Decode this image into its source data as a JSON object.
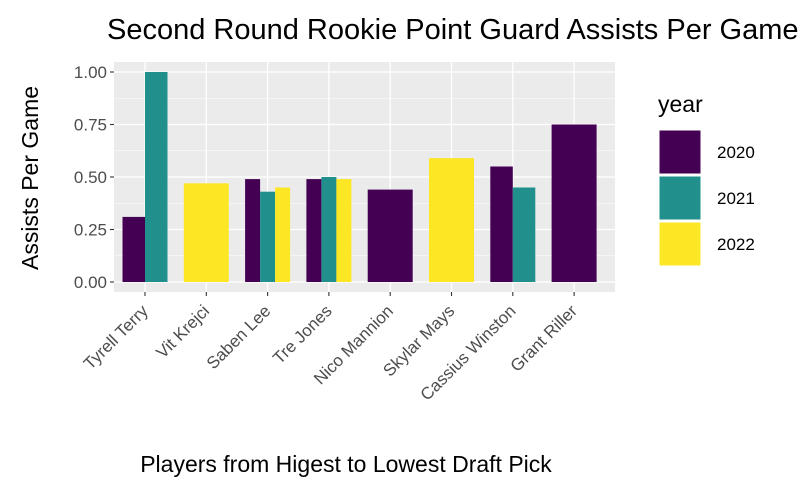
{
  "chart_data": {
    "type": "bar",
    "title": "Second Round Rookie Point Guard Assists Per Game",
    "xlabel": "Players from Higest to Lowest Draft Pick",
    "ylabel": "Assists Per Game",
    "ylim": [
      0,
      1.05
    ],
    "yticks": [
      "0.00",
      "0.25",
      "0.50",
      "0.75",
      "1.00"
    ],
    "grid": true,
    "legend_position": "right",
    "legend_title": "year",
    "categories": [
      "Tyrell Terry",
      "Vit Krejci",
      "Saben Lee",
      "Tre Jones",
      "Nico Mannion",
      "Skylar Mays",
      "Cassius Winston",
      "Grant Riller"
    ],
    "series": [
      {
        "name": "2020",
        "color": "#440154",
        "values": [
          0.31,
          null,
          0.49,
          0.49,
          0.44,
          null,
          0.55,
          0.75
        ]
      },
      {
        "name": "2021",
        "color": "#21908C",
        "values": [
          1.0,
          null,
          0.43,
          0.5,
          null,
          null,
          0.45,
          null
        ]
      },
      {
        "name": "2022",
        "color": "#FDE725",
        "values": [
          null,
          0.47,
          0.45,
          0.49,
          null,
          0.59,
          null,
          null
        ]
      }
    ]
  }
}
